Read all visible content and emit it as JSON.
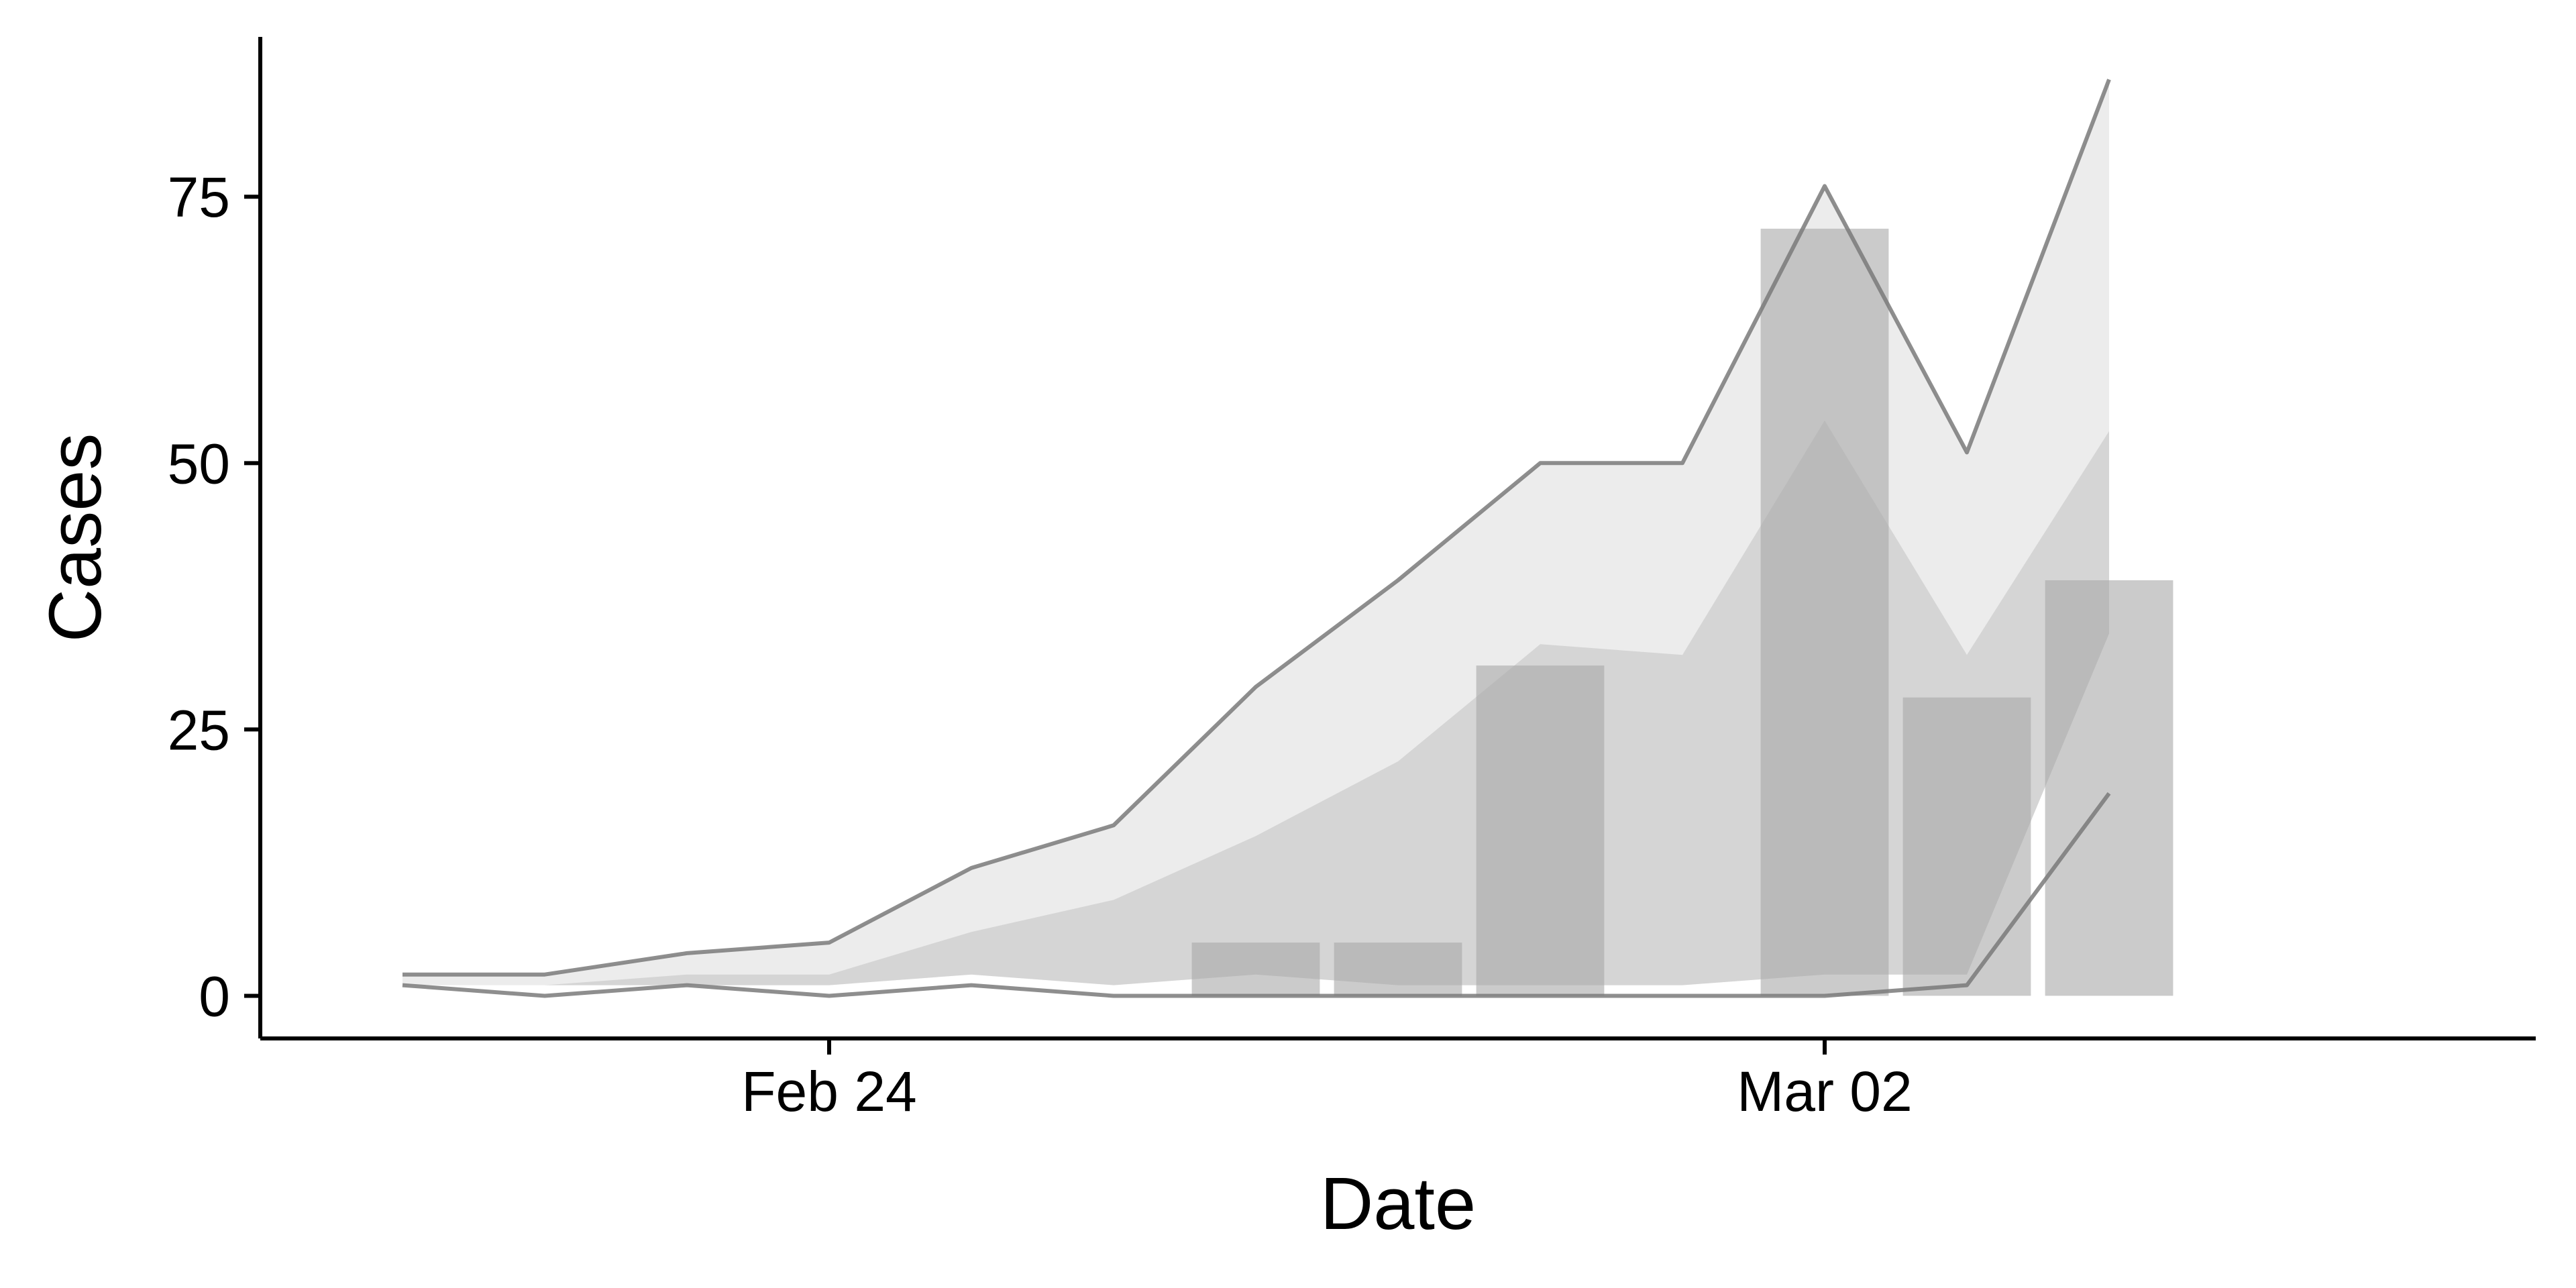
{
  "chart_data": {
    "type": "bar",
    "title": "",
    "xlabel": "Date",
    "ylabel": "Cases",
    "x_type": "date",
    "dates": [
      "2020-02-21",
      "2020-02-22",
      "2020-02-23",
      "2020-02-24",
      "2020-02-25",
      "2020-02-26",
      "2020-02-27",
      "2020-02-28",
      "2020-02-29",
      "2020-03-01",
      "2020-03-02",
      "2020-03-03",
      "2020-03-04"
    ],
    "bars": {
      "dates": [
        "2020-02-27",
        "2020-02-28",
        "2020-02-29",
        "2020-03-02",
        "2020-03-03",
        "2020-03-04"
      ],
      "values": [
        5,
        5,
        31,
        72,
        28,
        39
      ],
      "color": "#a8a8a8"
    },
    "bands": [
      {
        "lower": [
          1,
          1,
          1,
          1,
          2,
          1,
          2,
          1,
          1,
          1,
          2,
          2,
          34
        ],
        "upper": [
          2,
          2,
          4,
          5,
          12,
          16,
          29,
          39,
          50,
          50,
          76,
          51,
          86
        ],
        "color": "#e0e0e0"
      },
      {
        "lower": [
          1,
          1,
          1,
          1,
          2,
          1,
          2,
          1,
          1,
          1,
          2,
          2,
          34
        ],
        "upper": [
          1,
          1,
          2,
          2,
          6,
          9,
          15,
          22,
          33,
          32,
          54,
          32,
          53
        ],
        "color": "#c6c6c6"
      }
    ],
    "lines": [
      {
        "name": "",
        "values": [
          2,
          2,
          4,
          5,
          12,
          16,
          29,
          39,
          50,
          50,
          76,
          51,
          86
        ],
        "color": "#7a7a7a"
      },
      {
        "name": "",
        "values": [
          1,
          0,
          1,
          0,
          1,
          0,
          0,
          0,
          0,
          0,
          0,
          1,
          19
        ],
        "color": "#7a7a7a"
      }
    ],
    "xticks": [
      {
        "date": "2020-02-24",
        "label": "Feb 24"
      },
      {
        "date": "2020-03-02",
        "label": "Mar 02"
      }
    ],
    "yticks": [
      0,
      25,
      50,
      75
    ],
    "ylim": [
      -4,
      90
    ],
    "xlim": [
      "2020-02-20",
      "2020-03-07"
    ],
    "grid": false,
    "legend": "none"
  }
}
